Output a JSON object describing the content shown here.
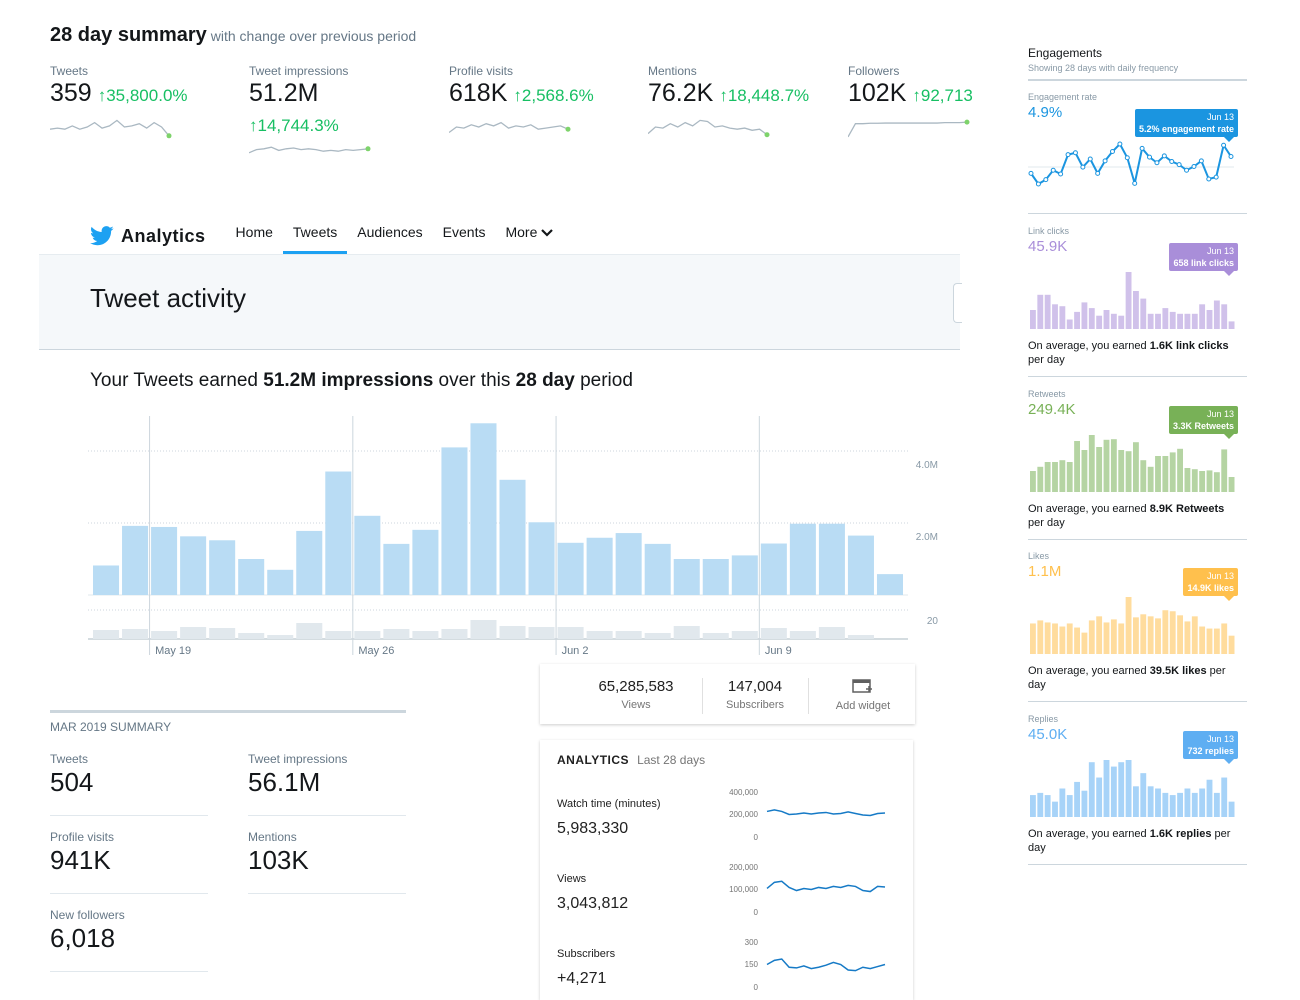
{
  "summary": {
    "title": "28 day summary",
    "subtitle": "with change over previous period",
    "metrics": [
      {
        "label": "Tweets",
        "value": "359",
        "change": "35,800.0%"
      },
      {
        "label": "Tweet impressions",
        "value": "51.2M",
        "change": "14,744.3%"
      },
      {
        "label": "Profile visits",
        "value": "618K",
        "change": "2,568.6%"
      },
      {
        "label": "Mentions",
        "value": "76.2K",
        "change": "18,448.7%"
      },
      {
        "label": "Followers",
        "value": "102K",
        "change": "92,713"
      }
    ],
    "up_arrow": "↑",
    "colors": {
      "positive": "#17bf63",
      "sparkline": "#aab8c2"
    }
  },
  "nav": {
    "brand": "Analytics",
    "tabs": [
      "Home",
      "Tweets",
      "Audiences",
      "Events",
      "More"
    ],
    "active": "Tweets",
    "more_icon": "chevron-down-icon"
  },
  "page": {
    "heading": "Tweet activity",
    "earned_prefix": "Your Tweets earned ",
    "earned_amount": "51.2M impressions",
    "earned_middle": " over this ",
    "earned_period": "28 day",
    "earned_suffix": " period"
  },
  "chart_data": [
    {
      "type": "bar",
      "title": "",
      "x_tick_labels": [
        "May 19",
        "May 26",
        "Jun 2",
        "Jun 9"
      ],
      "series": [
        {
          "values": [
            0.82,
            1.92,
            1.89,
            1.63,
            1.52,
            1.0,
            0.7,
            1.78,
            3.43,
            2.2,
            1.42,
            1.81,
            4.1,
            4.77,
            3.2,
            2.02,
            1.45,
            1.59,
            1.72,
            1.42,
            1.0,
            1.0,
            1.1,
            1.43,
            1.98,
            1.98,
            1.65,
            0.58
          ]
        },
        {
          "values": [
            9,
            10,
            8,
            12,
            11,
            6,
            4,
            16,
            8,
            8,
            10,
            8,
            10,
            19,
            13,
            12,
            12,
            8,
            8,
            6,
            13,
            6,
            8,
            11,
            8,
            12,
            4,
            0
          ]
        }
      ],
      "y_ticks_primary": [
        "2.0M",
        "4.0M"
      ],
      "y_ticks_secondary": [
        "20"
      ],
      "colors": {
        "impressions": "#b9dcf4",
        "engagements": "#e1e8ed"
      }
    }
  ],
  "youtube": {
    "views": {
      "value": "65,285,583",
      "label": "Views"
    },
    "subscribers": {
      "value": "147,004",
      "label": "Subscribers"
    },
    "add_widget": {
      "label": "Add widget",
      "icon": "add-widget-icon"
    },
    "analytics_title": "ANALYTICS",
    "analytics_period": "Last 28 days",
    "rows": [
      {
        "label": "Watch time (minutes)",
        "value": "5,983,330",
        "ticks": [
          "400,000",
          "200,000",
          "0"
        ],
        "values": [
          230000,
          245000,
          230000,
          200000,
          205000,
          215000,
          205000,
          215000,
          220000,
          205000,
          210000,
          225000,
          210000,
          195000,
          190000,
          210000,
          215000
        ]
      },
      {
        "label": "Views",
        "value": "3,043,812",
        "ticks": [
          "200,000",
          "100,000",
          "0"
        ],
        "values": [
          105000,
          135000,
          140000,
          110000,
          95000,
          105000,
          100000,
          110000,
          105000,
          115000,
          110000,
          120000,
          115000,
          95000,
          90000,
          115000,
          112000
        ]
      },
      {
        "label": "Subscribers",
        "value": "+4,271",
        "ticks": [
          "300",
          "150",
          "0"
        ],
        "values": [
          150,
          180,
          190,
          130,
          125,
          140,
          120,
          130,
          145,
          165,
          150,
          110,
          105,
          130,
          120,
          135,
          150
        ]
      }
    ],
    "line_color": "#167ac6"
  },
  "month_summary": {
    "title": "MAR 2019 SUMMARY",
    "cells": [
      {
        "label": "Tweets",
        "value": "504"
      },
      {
        "label": "Tweet impressions",
        "value": "56.1M"
      },
      {
        "label": "Profile visits",
        "value": "941K"
      },
      {
        "label": "Mentions",
        "value": "103K"
      },
      {
        "label": "New followers",
        "value": "6,018"
      }
    ]
  },
  "engagements": {
    "title": "Engagements",
    "subtitle": "Showing 28 days with daily frequency",
    "cards": [
      {
        "label": "Engagement rate",
        "value": "4.9%",
        "color": "#1b95e0",
        "tip_date": "Jun 13",
        "tip_text": "5.2% engagement rate",
        "avg_prefix": "",
        "avg_bold": "",
        "avg_suffix": "",
        "values": [
          2.5,
          0.8,
          1.5,
          3.0,
          2.4,
          5.5,
          5.8,
          3.5,
          4.8,
          2.5,
          4.5,
          6.0,
          7.2,
          5.0,
          0.9,
          6.5,
          5.1,
          4.2,
          5.3,
          4.4,
          3.9,
          3.0,
          3.6,
          4.5,
          1.6,
          1.9,
          7.0,
          5.2
        ]
      },
      {
        "label": "Link clicks",
        "value": "45.9K",
        "color": "#a98ed9",
        "tip_date": "Jun 13",
        "tip_text": "658 link clicks",
        "avg_prefix": "On average, you earned ",
        "avg_bold": "1.6K link clicks",
        "avg_suffix": " per day",
        "values": [
          1.0,
          1.8,
          1.8,
          1.3,
          1.2,
          0.5,
          0.9,
          1.4,
          1.1,
          0.7,
          1.0,
          0.8,
          0.7,
          3.0,
          2.0,
          1.6,
          0.8,
          0.8,
          1.1,
          0.9,
          0.8,
          0.8,
          0.8,
          1.3,
          1.0,
          1.5,
          1.3,
          0.4
        ]
      },
      {
        "label": "Retweets",
        "value": "249.4K",
        "color": "#78b157",
        "tip_date": "Jun 13",
        "tip_text": "3.3K Retweets",
        "avg_prefix": "On average, you earned ",
        "avg_bold": "8.9K Retweets",
        "avg_suffix": " per day",
        "values": [
          3.5,
          4.2,
          5.0,
          5.0,
          5.3,
          5.0,
          8.5,
          7.0,
          9.5,
          7.5,
          8.7,
          8.8,
          7.0,
          6.8,
          8.3,
          5.3,
          4.2,
          6.0,
          6.0,
          6.6,
          7.2,
          4.0,
          3.8,
          3.5,
          3.6,
          3.3,
          7.1,
          2.5
        ]
      },
      {
        "label": "Likes",
        "value": "1.1M",
        "color": "#ffc04d",
        "tip_date": "Jun 13",
        "tip_text": "14.9K likes",
        "avg_prefix": "On average, you earned ",
        "avg_bold": "39.5K likes",
        "avg_suffix": " per day",
        "values": [
          30,
          33,
          31,
          30,
          27,
          30,
          26,
          21,
          33,
          37,
          31,
          34,
          30,
          56,
          36,
          39,
          37,
          35,
          43,
          42,
          38,
          32,
          37,
          27,
          25,
          25,
          30,
          18
        ]
      },
      {
        "label": "Replies",
        "value": "45.0K",
        "color": "#5eaef2",
        "tip_date": "Jun 13",
        "tip_text": "732 replies",
        "avg_prefix": "On average, you earned ",
        "avg_bold": "1.6K replies",
        "avg_suffix": " per day",
        "values": [
          1.0,
          1.1,
          1.0,
          0.7,
          1.3,
          1.0,
          1.6,
          1.2,
          2.5,
          1.8,
          2.6,
          2.3,
          2.5,
          2.6,
          1.4,
          2.0,
          1.4,
          1.3,
          1.1,
          1.0,
          1.1,
          1.3,
          1.1,
          1.3,
          1.7,
          1.1,
          1.8,
          0.7
        ]
      }
    ]
  }
}
